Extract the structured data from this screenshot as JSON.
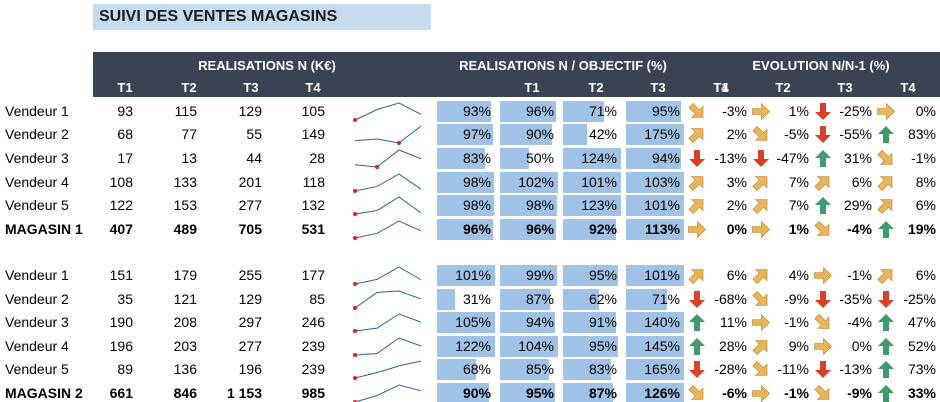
{
  "title": "SUIVI DES VENTES MAGASINS",
  "headers": {
    "group1": "REALISATIONS N (K€)",
    "group2": "REALISATIONS N / OBJECTIF (%)",
    "group3": "EVOLUTION N/N-1 (%)",
    "quarters": [
      "T1",
      "T2",
      "T3",
      "T4"
    ]
  },
  "colors": {
    "header_bg": "#3a4353",
    "title_bg": "#c5dcef",
    "bar": "#9fc2e6",
    "up": "#3f9a6c",
    "down": "#d8402a",
    "neutral": "#eab55a"
  },
  "sections": [
    {
      "rows": [
        {
          "label": "Vendeur 1",
          "bold": false,
          "vals": [
            "93",
            "115",
            "129",
            "105"
          ],
          "pct": [
            93,
            96,
            71,
            95
          ],
          "pct_txt": [
            "93%",
            "96%",
            "71%",
            "95%"
          ],
          "evo": [
            "-3%",
            "1%",
            "-25%",
            "0%"
          ],
          "arrows": [
            "diag-down",
            "right",
            "down",
            "right"
          ]
        },
        {
          "label": "Vendeur 2",
          "bold": false,
          "vals": [
            "68",
            "77",
            "55",
            "149"
          ],
          "pct": [
            97,
            90,
            42,
            175
          ],
          "pct_txt": [
            "97%",
            "90%",
            "42%",
            "175%"
          ],
          "evo": [
            "2%",
            "-5%",
            "-55%",
            "83%"
          ],
          "arrows": [
            "diag-up",
            "diag-down",
            "down",
            "up"
          ]
        },
        {
          "label": "Vendeur 3",
          "bold": false,
          "vals": [
            "17",
            "13",
            "44",
            "28"
          ],
          "pct": [
            83,
            50,
            124,
            94
          ],
          "pct_txt": [
            "83%",
            "50%",
            "124%",
            "94%"
          ],
          "evo": [
            "-13%",
            "-47%",
            "31%",
            "-1%"
          ],
          "arrows": [
            "down",
            "down",
            "up",
            "diag-down"
          ]
        },
        {
          "label": "Vendeur 4",
          "bold": false,
          "vals": [
            "108",
            "133",
            "201",
            "118"
          ],
          "pct": [
            98,
            102,
            101,
            103
          ],
          "pct_txt": [
            "98%",
            "102%",
            "101%",
            "103%"
          ],
          "evo": [
            "3%",
            "7%",
            "6%",
            "8%"
          ],
          "arrows": [
            "diag-up",
            "diag-up",
            "diag-up",
            "diag-up"
          ]
        },
        {
          "label": "Vendeur 5",
          "bold": false,
          "vals": [
            "122",
            "153",
            "277",
            "132"
          ],
          "pct": [
            98,
            98,
            123,
            101
          ],
          "pct_txt": [
            "98%",
            "98%",
            "123%",
            "101%"
          ],
          "evo": [
            "2%",
            "7%",
            "29%",
            "6%"
          ],
          "arrows": [
            "diag-up",
            "diag-up",
            "up",
            "diag-up"
          ]
        },
        {
          "label": "MAGASIN 1",
          "bold": true,
          "vals": [
            "407",
            "489",
            "705",
            "531"
          ],
          "pct": [
            96,
            96,
            92,
            113
          ],
          "pct_txt": [
            "96%",
            "96%",
            "92%",
            "113%"
          ],
          "evo": [
            "0%",
            "1%",
            "-4%",
            "19%"
          ],
          "arrows": [
            "right",
            "right",
            "diag-down",
            "up"
          ]
        }
      ]
    },
    {
      "rows": [
        {
          "label": "Vendeur 1",
          "bold": false,
          "vals": [
            "151",
            "179",
            "255",
            "177"
          ],
          "pct": [
            101,
            99,
            95,
            101
          ],
          "pct_txt": [
            "101%",
            "99%",
            "95%",
            "101%"
          ],
          "evo": [
            "6%",
            "4%",
            "-1%",
            "6%"
          ],
          "arrows": [
            "diag-up",
            "diag-up",
            "right",
            "diag-up"
          ]
        },
        {
          "label": "Vendeur 2",
          "bold": false,
          "vals": [
            "35",
            "121",
            "129",
            "85"
          ],
          "pct": [
            31,
            87,
            62,
            71
          ],
          "pct_txt": [
            "31%",
            "87%",
            "62%",
            "71%"
          ],
          "evo": [
            "-68%",
            "-9%",
            "-35%",
            "-25%"
          ],
          "arrows": [
            "down",
            "diag-down",
            "down",
            "down"
          ]
        },
        {
          "label": "Vendeur 3",
          "bold": false,
          "vals": [
            "190",
            "208",
            "297",
            "246"
          ],
          "pct": [
            105,
            94,
            91,
            140
          ],
          "pct_txt": [
            "105%",
            "94%",
            "91%",
            "140%"
          ],
          "evo": [
            "11%",
            "-1%",
            "-4%",
            "47%"
          ],
          "arrows": [
            "up",
            "right",
            "diag-down",
            "up"
          ]
        },
        {
          "label": "Vendeur 4",
          "bold": false,
          "vals": [
            "196",
            "203",
            "277",
            "239"
          ],
          "pct": [
            122,
            104,
            95,
            145
          ],
          "pct_txt": [
            "122%",
            "104%",
            "95%",
            "145%"
          ],
          "evo": [
            "28%",
            "9%",
            "0%",
            "52%"
          ],
          "arrows": [
            "up",
            "diag-up",
            "right",
            "up"
          ]
        },
        {
          "label": "Vendeur 5",
          "bold": false,
          "vals": [
            "89",
            "136",
            "196",
            "239"
          ],
          "pct": [
            68,
            85,
            83,
            165
          ],
          "pct_txt": [
            "68%",
            "85%",
            "83%",
            "165%"
          ],
          "evo": [
            "-28%",
            "-11%",
            "-13%",
            "73%"
          ],
          "arrows": [
            "down",
            "diag-down",
            "down",
            "up"
          ]
        },
        {
          "label": "MAGASIN 2",
          "bold": true,
          "vals": [
            "661",
            "846",
            "1 153",
            "985"
          ],
          "pct": [
            90,
            95,
            87,
            126
          ],
          "pct_txt": [
            "90%",
            "95%",
            "87%",
            "126%"
          ],
          "evo": [
            "-6%",
            "-1%",
            "-9%",
            "33%"
          ],
          "arrows": [
            "diag-down",
            "right",
            "diag-down",
            "up"
          ]
        }
      ]
    }
  ]
}
